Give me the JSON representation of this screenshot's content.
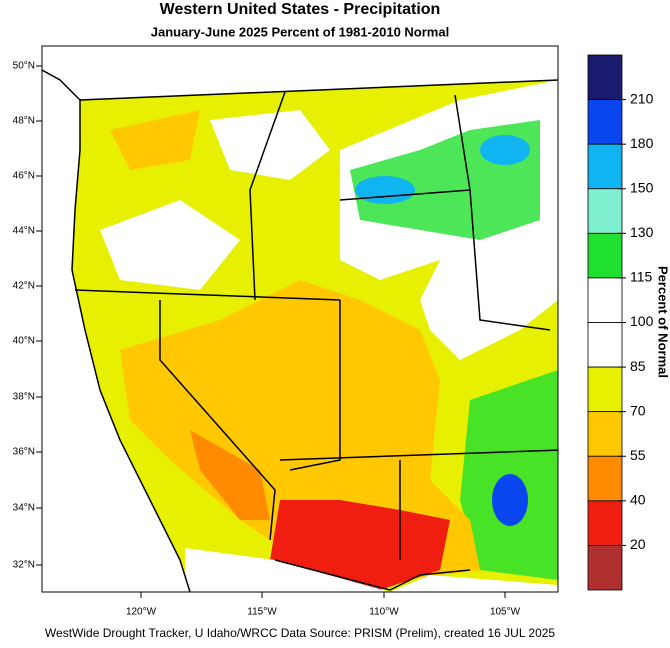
{
  "header": {
    "title": "Western United States - Precipitation",
    "subtitle": "January-June 2025  Percent of 1981-2010 Normal"
  },
  "map": {
    "lat_labels": [
      "50°N",
      "48°N",
      "46°N",
      "44°N",
      "42°N",
      "40°N",
      "38°N",
      "36°N",
      "34°N",
      "32°N"
    ],
    "lon_labels": [
      "120°W",
      "115°W",
      "110°W",
      "105°W"
    ]
  },
  "legend": {
    "title": "Percent of Normal",
    "ticks": [
      210,
      180,
      150,
      130,
      115,
      100,
      85,
      70,
      55,
      40,
      20
    ],
    "colors": [
      "#1a1a6e",
      "#0a46f0",
      "#10b4f0",
      "#80f0d0",
      "#20e030",
      "#ffffff",
      "#ffffff",
      "#e6f000",
      "#ffc800",
      "#ff8c00",
      "#f01e10",
      "#b03030"
    ]
  },
  "footer": "WestWide Drought Tracker, U Idaho/WRCC Data Source: PRISM (Prelim), created 16 JUL 2025"
}
